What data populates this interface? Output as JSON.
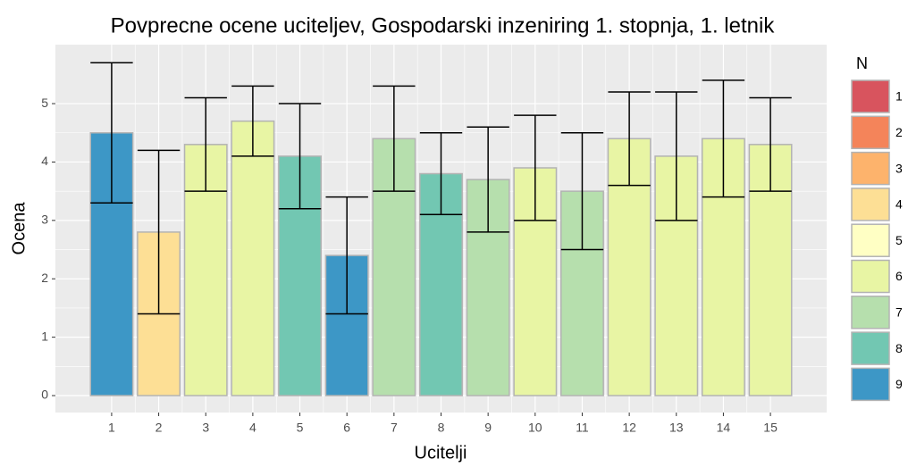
{
  "chart_data": {
    "type": "bar",
    "title": "Povprecne ocene uciteljev, Gospodarski inzeniring 1. stopnja, 1. letnik",
    "x_label": "Ucitelji",
    "y_label": "Ocena",
    "x": [
      1,
      2,
      3,
      4,
      5,
      6,
      7,
      8,
      9,
      10,
      11,
      12,
      13,
      14,
      15
    ],
    "values": [
      4.5,
      2.8,
      4.3,
      4.7,
      4.1,
      2.4,
      4.4,
      3.8,
      3.7,
      3.9,
      3.5,
      4.4,
      4.1,
      4.4,
      4.3
    ],
    "errors": [
      1.2,
      1.4,
      0.8,
      0.6,
      0.9,
      1.0,
      0.9,
      0.7,
      0.9,
      0.9,
      1.0,
      0.8,
      1.1,
      1.0,
      0.8
    ],
    "n": [
      9,
      4,
      6,
      6,
      8,
      9,
      7,
      8,
      7,
      6,
      7,
      6,
      6,
      6,
      6
    ],
    "xlim": [
      -0.195,
      16.195
    ],
    "xticks": [
      1,
      2,
      3,
      4,
      5,
      6,
      7,
      8,
      9,
      10,
      11,
      12,
      13,
      14,
      15
    ],
    "ylim": [
      -0.29,
      6.01
    ],
    "yticks": [
      0,
      1,
      2,
      3,
      4,
      5
    ],
    "grid": true,
    "legend": {
      "title": "N",
      "levels": [
        1,
        2,
        3,
        4,
        5,
        6,
        7,
        8,
        9
      ],
      "colors": [
        "#d8545e",
        "#f4845a",
        "#fdb36c",
        "#fddf95",
        "#ffffc4",
        "#e8f5a4",
        "#b6dfad",
        "#72c7b2",
        "#3d97c6"
      ]
    }
  }
}
